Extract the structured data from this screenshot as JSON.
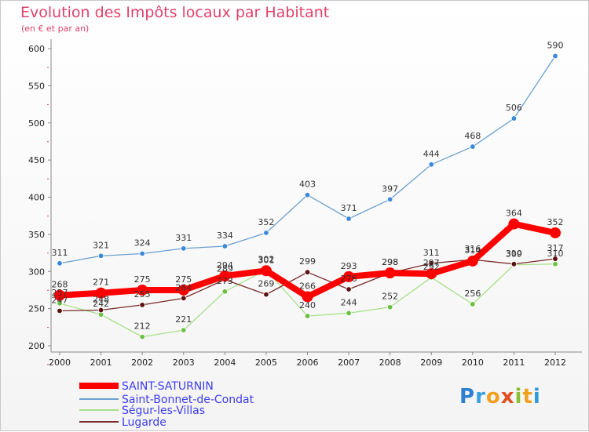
{
  "title": "Evolution des Impôts locaux par Habitant",
  "subtitle": "(en € et par an)",
  "logo": {
    "text": "Proxiti",
    "letters": [
      "P",
      "r",
      "o",
      "x",
      "i",
      "t",
      "i"
    ],
    "colors": [
      "#2f7fd1",
      "#3aa0e0",
      "#f0a020",
      "#e05020",
      "#8cc030",
      "#f0a020",
      "#2f9ad8"
    ]
  },
  "chart_data": {
    "type": "line",
    "title": "Evolution des Impôts locaux par Habitant",
    "subtitle": "(en € et par an)",
    "xlabel": "",
    "ylabel": "",
    "ylim": [
      200,
      600
    ],
    "y_ticks": [
      200,
      250,
      300,
      350,
      400,
      450,
      500,
      550,
      600
    ],
    "x": [
      "2000",
      "2001",
      "2002",
      "2003",
      "2004",
      "2005",
      "2006",
      "2007",
      "2008",
      "2009",
      "2010",
      "2011",
      "2012"
    ],
    "legend_position": "bottom-left",
    "series": [
      {
        "name": "SAINT-SATURNIN",
        "color": "#ff0000",
        "marker_color": "#ff0000",
        "width": 8,
        "values": [
          268,
          271,
          275,
          275,
          294,
          301,
          266,
          293,
          298,
          297,
          314,
          364,
          352
        ]
      },
      {
        "name": "Saint-Bonnet-de-Condat",
        "color": "#6aa0d0",
        "marker_color": "#3a88d8",
        "width": 1.3,
        "values": [
          311,
          321,
          324,
          331,
          334,
          352,
          403,
          371,
          397,
          444,
          468,
          506,
          590
        ]
      },
      {
        "name": "Ségur-les-Villas",
        "color": "#a8e08a",
        "marker_color": "#6cc040",
        "width": 1.3,
        "values": [
          257,
          242,
          212,
          221,
          273,
          302,
          240,
          244,
          252,
          292,
          256,
          309,
          310
        ]
      },
      {
        "name": "Lugarde",
        "color": "#7a2a2a",
        "marker_color": "#5a1010",
        "width": 1.3,
        "values": [
          247,
          248,
          255,
          264,
          289,
          269,
          299,
          276,
          298,
          311,
          316,
          310,
          317
        ]
      }
    ]
  }
}
